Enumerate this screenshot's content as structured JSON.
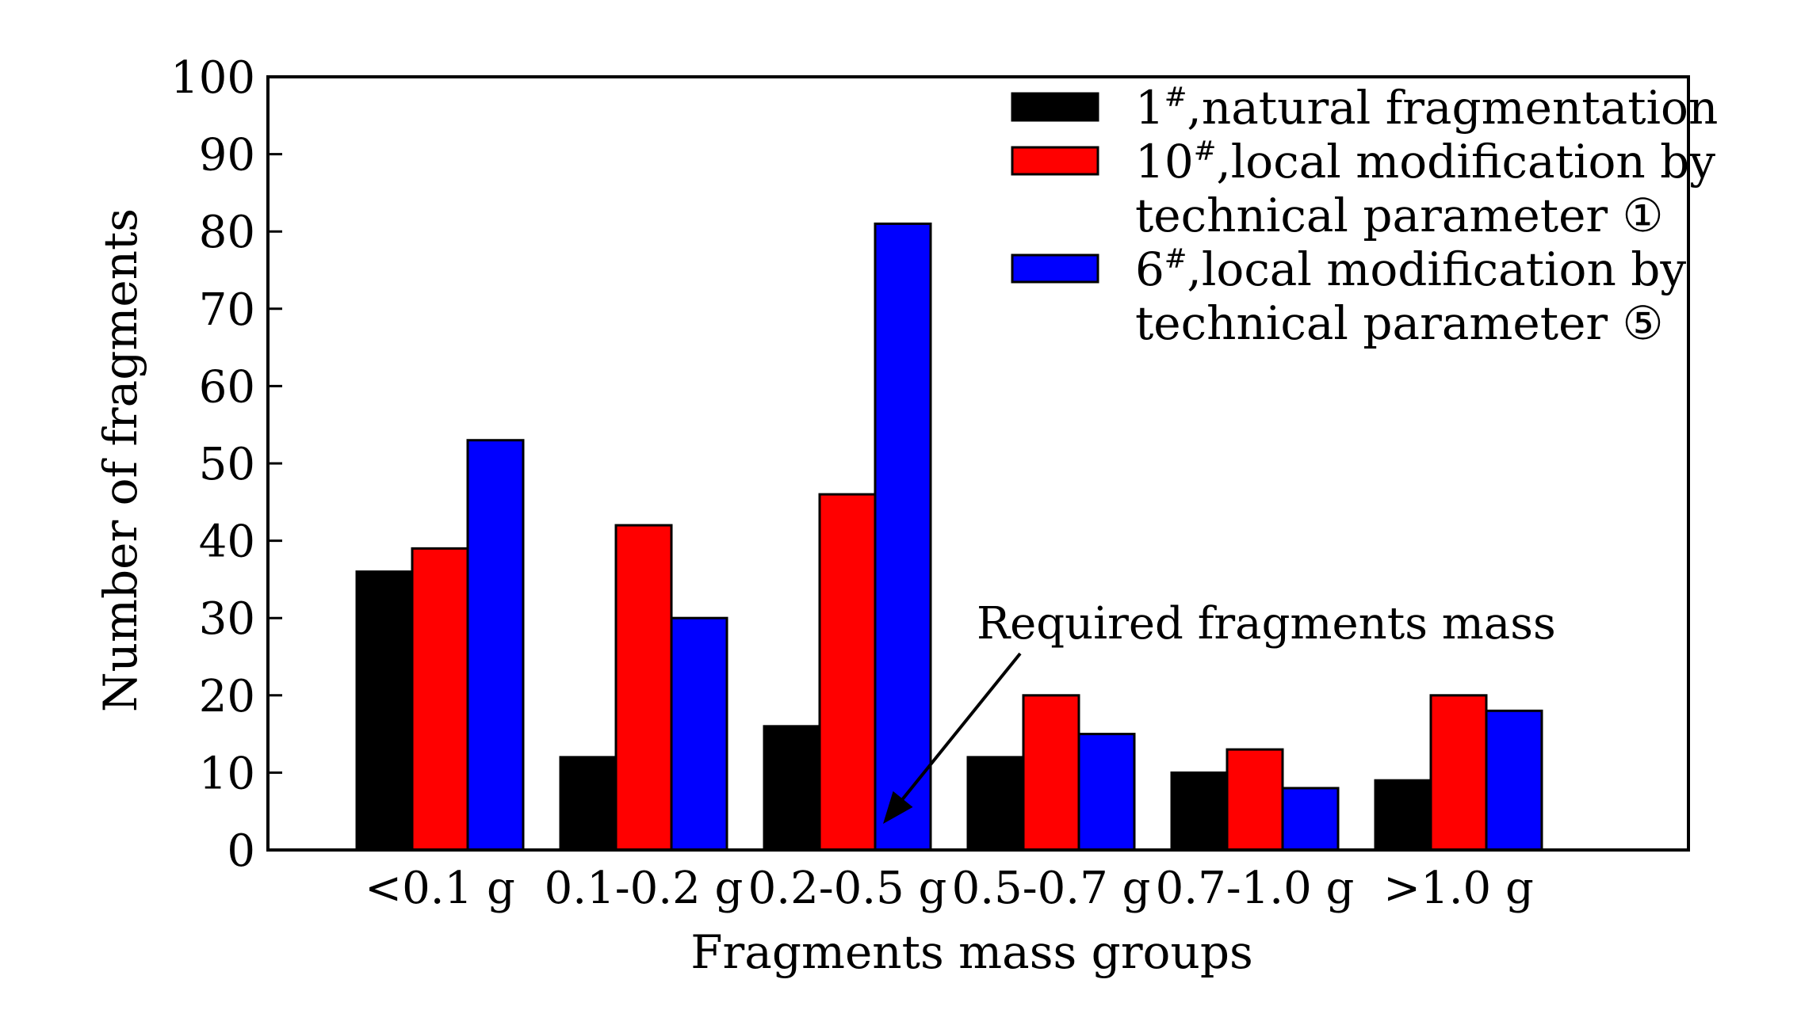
{
  "chart_data": {
    "type": "bar",
    "title": "",
    "xlabel": "Fragments mass groups",
    "ylabel": "Number of fragments",
    "ylim": [
      0,
      100
    ],
    "yticks": [
      "0",
      "10",
      "20",
      "30",
      "40",
      "50",
      "60",
      "70",
      "80",
      "90",
      "100"
    ],
    "categories": [
      "<0.1 g",
      "0.1-0.2 g",
      "0.2-0.5 g",
      "0.5-0.7 g",
      "0.7-1.0 g",
      ">1.0 g"
    ],
    "series": [
      {
        "name": "natural fragmentation",
        "id": "1",
        "sup": "#",
        "legend_lines": [
          "natural fragmentation"
        ],
        "color": "#000000",
        "values": [
          36,
          12,
          16,
          12,
          10,
          9
        ]
      },
      {
        "name": "local modification by technical parameter ①",
        "id": "10",
        "sup": "#",
        "legend_lines": [
          "local modification by",
          "technical parameter ①"
        ],
        "color": "#ff0000",
        "values": [
          39,
          42,
          46,
          20,
          13,
          20
        ]
      },
      {
        "name": "local modification by technical parameter ⑤",
        "id": "6",
        "sup": "#",
        "legend_lines": [
          "local modification by",
          "technical parameter ⑤"
        ],
        "color": "#0000ff",
        "values": [
          53,
          30,
          81,
          15,
          8,
          18
        ]
      }
    ],
    "legend_position": "top-right",
    "grid": false,
    "annotations": [
      {
        "text": "Required fragments mass",
        "points_to_category": "0.2-0.5 g",
        "arrow": true
      }
    ]
  }
}
